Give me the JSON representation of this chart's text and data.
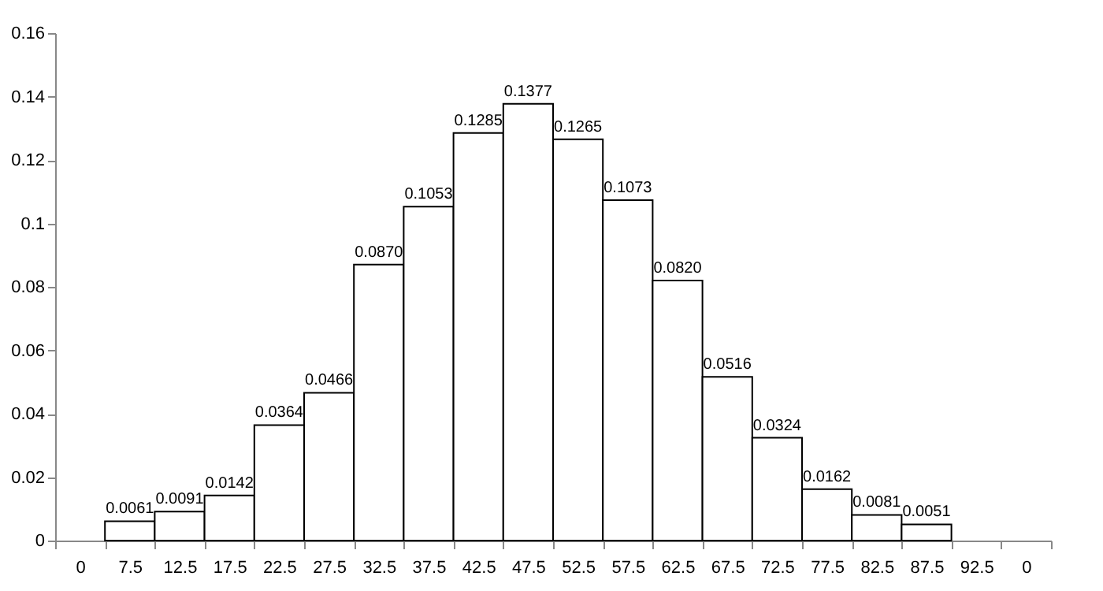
{
  "chart_data": {
    "type": "bar",
    "categories": [
      "0",
      "7.5",
      "12.5",
      "17.5",
      "22.5",
      "27.5",
      "32.5",
      "37.5",
      "42.5",
      "47.5",
      "52.5",
      "57.5",
      "62.5",
      "67.5",
      "72.5",
      "77.5",
      "82.5",
      "87.5",
      "92.5",
      "0"
    ],
    "values": [
      null,
      0.0061,
      0.0091,
      0.0142,
      0.0364,
      0.0466,
      0.087,
      0.1053,
      0.1285,
      0.1377,
      0.1265,
      0.1073,
      0.082,
      0.0516,
      0.0324,
      0.0162,
      0.0081,
      0.0051,
      null,
      null
    ],
    "value_labels": [
      null,
      "0.0061",
      "0.0091",
      "0.0142",
      "0.0364",
      "0.0466",
      "0.0870",
      "0.1053",
      "0.1285",
      "0.1377",
      "0.1265",
      "0.1073",
      "0.0820",
      "0.0516",
      "0.0324",
      "0.0162",
      "0.0081",
      "0.0051",
      null,
      null
    ],
    "color": "#ffffff",
    "ylim": [
      0,
      0.16
    ],
    "yticks": [
      0,
      0.02,
      0.04,
      0.06,
      0.08,
      0.1,
      0.12,
      0.14,
      0.16
    ],
    "grid": false
  }
}
